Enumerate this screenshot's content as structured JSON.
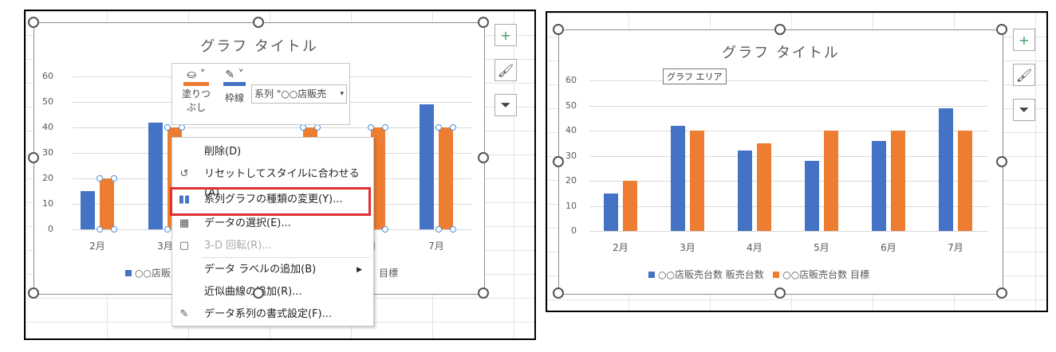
{
  "colors": {
    "series1": "#4472c4",
    "series2": "#ed7d31",
    "highlight": "#e03030"
  },
  "chart_data": {
    "type": "bar",
    "title": "グラフ タイトル",
    "categories": [
      "2月",
      "3月",
      "4月",
      "5月",
      "6月",
      "7月"
    ],
    "series": [
      {
        "name": "○○店販売台数 販売台数",
        "values": [
          15,
          42,
          32,
          28,
          36,
          49
        ]
      },
      {
        "name": "○○店販売台数 目標",
        "values": [
          20,
          40,
          35,
          40,
          40,
          40
        ]
      }
    ],
    "ylim": [
      0,
      60
    ],
    "yticks": [
      "0",
      "10",
      "20",
      "30",
      "40",
      "50",
      "60"
    ],
    "grid": true,
    "legend": "bottom"
  },
  "left": {
    "legend_left": "○○店販",
    "legend_right": "目標"
  },
  "mini_toolbar": {
    "fill_label": "塗りつぶし",
    "fill_label_1": "塗りつ",
    "fill_label_2": "ぶし",
    "outline_label": "枠線",
    "series_select": "系列 \"○○店販売"
  },
  "context_menu": [
    {
      "label": "削除(D)",
      "icon": "none",
      "enabled": true
    },
    {
      "label": "リセットしてスタイルに合わせる(A)",
      "icon": "reset-style-icon",
      "enabled": true
    },
    {
      "label": "系列グラフの種類の変更(Y)...",
      "icon": "chart-type-icon",
      "enabled": true,
      "highlighted": true
    },
    {
      "label": "データの選択(E)...",
      "icon": "select-data-icon",
      "enabled": true
    },
    {
      "label": "3-D 回転(R)...",
      "icon": "3d-rotation-icon",
      "enabled": false
    },
    {
      "label": "データ ラベルの追加(B)",
      "icon": "none",
      "enabled": true,
      "submenu": true
    },
    {
      "label": "近似曲線の追加(R)...",
      "icon": "none",
      "enabled": true
    },
    {
      "label": "データ系列の書式設定(F)...",
      "icon": "format-series-icon",
      "enabled": true
    }
  ],
  "right": {
    "tooltip": "グラフ エリア"
  },
  "side_buttons": [
    {
      "icon": "plus-icon",
      "glyph": "+"
    },
    {
      "icon": "brush-icon",
      "glyph": "🖌"
    },
    {
      "icon": "filter-icon",
      "glyph": "⏷"
    }
  ]
}
